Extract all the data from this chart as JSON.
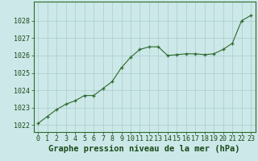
{
  "x": [
    0,
    1,
    2,
    3,
    4,
    5,
    6,
    7,
    8,
    9,
    10,
    11,
    12,
    13,
    14,
    15,
    16,
    17,
    18,
    19,
    20,
    21,
    22,
    23
  ],
  "y": [
    1022.1,
    1022.5,
    1022.9,
    1023.2,
    1023.4,
    1023.7,
    1023.7,
    1024.1,
    1024.5,
    1025.3,
    1025.9,
    1026.35,
    1026.5,
    1026.5,
    1026.0,
    1026.05,
    1026.1,
    1026.1,
    1026.05,
    1026.1,
    1026.35,
    1026.7,
    1028.0,
    1028.3
  ],
  "line_color": "#2d6a2d",
  "marker_color": "#2d6a2d",
  "bg_color": "#cce8e8",
  "grid_color": "#aacccc",
  "title": "Graphe pression niveau de la mer (hPa)",
  "title_color": "#1a4a1a",
  "ylim_min": 1021.6,
  "ylim_max": 1029.1,
  "xlim_min": -0.5,
  "xlim_max": 23.5,
  "yticks": [
    1022,
    1023,
    1024,
    1025,
    1026,
    1027,
    1028
  ],
  "xticks": [
    0,
    1,
    2,
    3,
    4,
    5,
    6,
    7,
    8,
    9,
    10,
    11,
    12,
    13,
    14,
    15,
    16,
    17,
    18,
    19,
    20,
    21,
    22,
    23
  ],
  "border_color": "#2d6a2d",
  "title_fontsize": 7.5,
  "tick_fontsize": 6.0
}
